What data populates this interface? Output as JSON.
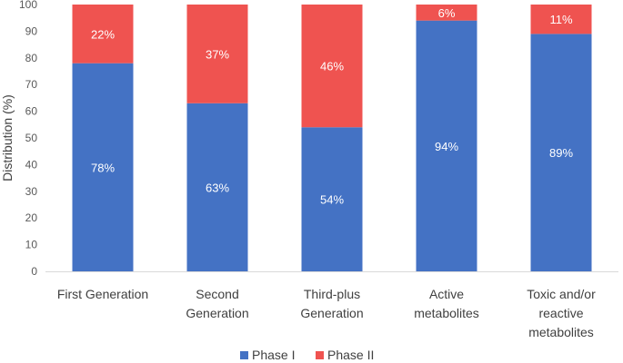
{
  "chart_data": {
    "type": "bar",
    "stacked": true,
    "title": "",
    "xlabel": "",
    "ylabel": "Distribution (%)",
    "ylim": [
      0,
      100
    ],
    "yticks": [
      0,
      10,
      20,
      30,
      40,
      50,
      60,
      70,
      80,
      90,
      100
    ],
    "grid": false,
    "legend_position": "bottom",
    "categories": [
      [
        "First Generation"
      ],
      [
        "Second",
        "Generation"
      ],
      [
        "Third-plus",
        "Generation"
      ],
      [
        "Active",
        "metabolites"
      ],
      [
        "Toxic and/or",
        "reactive",
        "metabolites"
      ]
    ],
    "series": [
      {
        "name": "Phase I",
        "color": "#4472c4",
        "values": [
          78,
          63,
          54,
          94,
          89
        ],
        "labels": [
          "78%",
          "63%",
          "54%",
          "94%",
          "89%"
        ]
      },
      {
        "name": "Phase II",
        "color": "#ef5350",
        "values": [
          22,
          37,
          46,
          6,
          11
        ],
        "labels": [
          "22%",
          "37%",
          "46%",
          "6%",
          "11%"
        ]
      }
    ]
  }
}
